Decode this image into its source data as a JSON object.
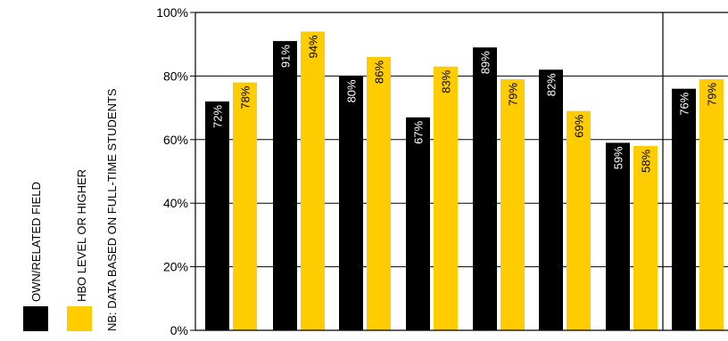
{
  "legend": {
    "items": [
      {
        "label": "OWN/RELATED FIELD",
        "color": "#000000"
      },
      {
        "label": "HBO LEVEL OR HIGHER",
        "color": "#FFCC00"
      }
    ],
    "note": "NB: DATA BASED ON FULL-TIME STUDENTS"
  },
  "chart_data": {
    "type": "bar",
    "title": "",
    "xlabel": "",
    "ylabel": "",
    "ylim": [
      0,
      100
    ],
    "y_ticks": [
      "0%",
      "20%",
      "40%",
      "60%",
      "80%",
      "100%"
    ],
    "grid": true,
    "legend_position": "left",
    "categories": [
      "",
      "",
      "",
      "",
      "",
      "",
      "",
      ""
    ],
    "series": [
      {
        "name": "OWN/RELATED FIELD",
        "color": "#000000",
        "values": [
          72,
          91,
          80,
          67,
          89,
          82,
          59,
          76
        ],
        "labels": [
          "72%",
          "91%",
          "80%",
          "67%",
          "89%",
          "82%",
          "59%",
          "76%"
        ]
      },
      {
        "name": "HBO LEVEL OR HIGHER",
        "color": "#FFCC00",
        "values": [
          78,
          94,
          86,
          83,
          79,
          69,
          58,
          79
        ],
        "labels": [
          "78%",
          "94%",
          "86%",
          "83%",
          "79%",
          "69%",
          "58%",
          "79%"
        ]
      }
    ]
  }
}
